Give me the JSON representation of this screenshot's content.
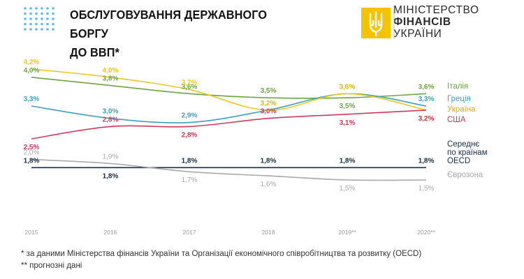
{
  "header": {
    "title_line1": "ОБСЛУГОВУВАННЯ ДЕРЖАВНОГО БОРГУ",
    "title_line2": "ДО ВВП*",
    "logo_line1": "МІНІСТЕРСТВО",
    "logo_line2": "ФІНАНСІВ",
    "logo_line3": "УКРАЇНИ"
  },
  "colors": {
    "dots": "#5bbce8",
    "logo": "#f5c400",
    "divider": "#b9b9b9"
  },
  "chart_data": {
    "type": "line",
    "categories": [
      "2015",
      "2016",
      "2017",
      "2018",
      "2019**",
      "2020**"
    ],
    "ylim": [
      1.3,
      4.4
    ],
    "grid": false,
    "legend": "right",
    "series": [
      {
        "name": "Італія",
        "color": "#6aa640",
        "values": [
          4.0,
          3.8,
          3.6,
          3.5,
          3.5,
          3.6
        ],
        "labels": [
          "4,0%",
          "3,8%",
          "3,6%",
          "3,5%",
          "3,5%",
          "3,6%"
        ]
      },
      {
        "name": "Греція",
        "color": "#3e9fbf",
        "values": [
          3.3,
          3.0,
          2.9,
          3.2,
          3.6,
          3.3
        ],
        "labels": [
          "3,3%",
          "3,0%",
          "2,9%",
          "3,2%",
          "3,6%",
          "3,3%"
        ]
      },
      {
        "name": "Україна",
        "color": "#efc61f",
        "values": [
          4.2,
          4.0,
          3.7,
          3.2,
          3.6,
          3.2
        ],
        "labels": [
          "4,2%",
          "4,0%",
          "3,7%",
          "3,2%",
          "3,6%",
          "3,2%"
        ]
      },
      {
        "name": "США",
        "color": "#cf3a5b",
        "values": [
          2.5,
          2.8,
          2.8,
          3.0,
          3.1,
          3.2
        ],
        "labels": [
          "2,5%",
          "2,8%",
          "2,8%",
          "3,0%",
          "3,1%",
          "3,2%"
        ]
      },
      {
        "name": "Середнє по країнам OECD",
        "color": "#172d44",
        "values": [
          1.8,
          1.8,
          1.8,
          1.8,
          1.8,
          1.8
        ],
        "labels": [
          "1,8%",
          "1,8%",
          "1,8%",
          "1,8%",
          "1,8%",
          "1,8%"
        ]
      },
      {
        "name": "Єврозона",
        "color": "#a9a9a9",
        "values": [
          2.0,
          1.9,
          1.7,
          1.6,
          1.5,
          1.5
        ],
        "labels": [
          "2,0%",
          "1,9%",
          "1,7%",
          "1,6%",
          "1,5%",
          "1,5%"
        ]
      }
    ]
  },
  "legend": {
    "italy": "Італія",
    "greece": "Греція",
    "ukraine": "Україна",
    "usa": "США",
    "oecd_line1": "Середнє",
    "oecd_line2": "по країнам",
    "oecd_line3": "OECD",
    "eurozone": "Єврозона"
  },
  "footnotes": {
    "note1": "* за даними Міністерства фінансів України та Організації економічного співробітництва та розвитку (OECD)",
    "note2": "** прогнозні дані"
  }
}
